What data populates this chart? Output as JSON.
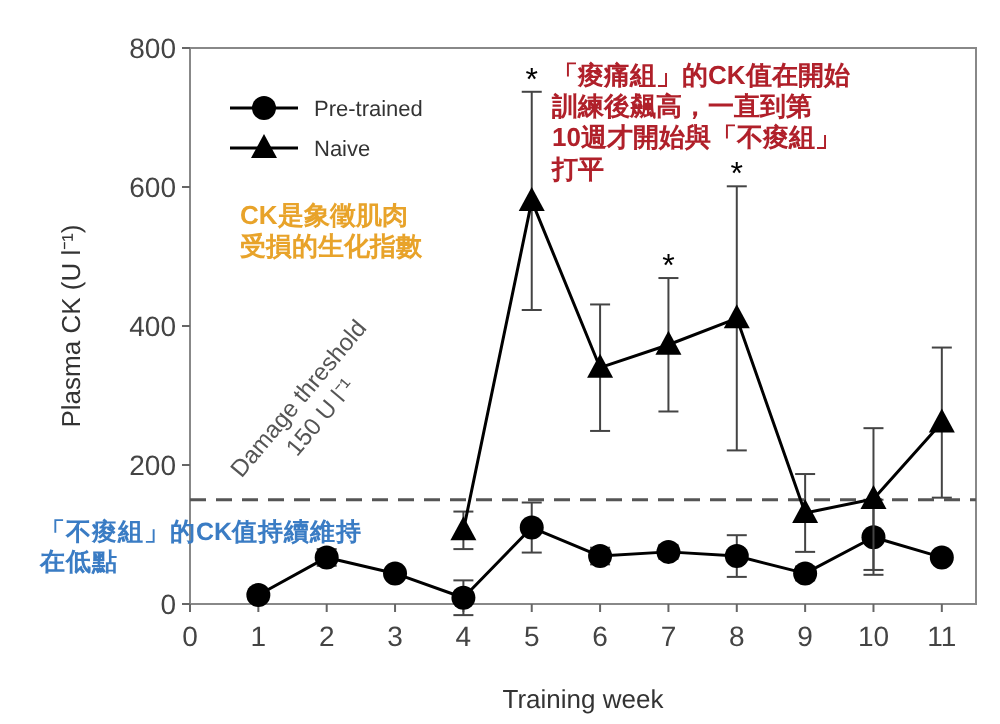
{
  "chart_data": {
    "type": "line",
    "xlabel": "Training week",
    "ylabel": "Plasma CK (U l⁻¹)",
    "xlim": [
      0,
      11.5
    ],
    "xticks": [
      0,
      1,
      2,
      3,
      4,
      5,
      6,
      7,
      8,
      9,
      10,
      11
    ],
    "ylim": [
      0,
      800
    ],
    "yticks": [
      0,
      200,
      400,
      600,
      800
    ],
    "grid": false,
    "legend": "top left",
    "series": [
      {
        "name": "Pre-trained",
        "color": "#000000",
        "marker": "circle",
        "x": [
          1,
          2,
          3,
          4,
          5,
          6,
          7,
          8,
          9,
          10,
          11
        ],
        "values": [
          13,
          67,
          44,
          9,
          110,
          69,
          75,
          69,
          44,
          96,
          67
        ],
        "errors": [
          null,
          12,
          null,
          25,
          36,
          12,
          10,
          30,
          10,
          54,
          null
        ]
      },
      {
        "name": "Naive",
        "color": "#000000",
        "marker": "triangle",
        "x": [
          4,
          5,
          6,
          7,
          8,
          9,
          10,
          11
        ],
        "values": [
          106,
          580,
          340,
          373,
          411,
          131,
          151,
          261
        ],
        "errors": [
          27,
          157,
          91,
          96,
          190,
          56,
          102,
          108
        ]
      }
    ],
    "ref_lines": [
      {
        "axis": "y",
        "value": 150,
        "label": "Damage threshold\n150 U l⁻¹",
        "line_style": "dashed",
        "color": "#555555"
      }
    ],
    "annotations": [
      "*",
      "*",
      "*",
      "CK是象徵肌肉受損的生化指數",
      "「痠痛組」的CK值在開始訓練後飆高，一直到第10週才開始與「不痠組」打平",
      "「不痠組」的CK值持續維持在低點"
    ]
  }
}
